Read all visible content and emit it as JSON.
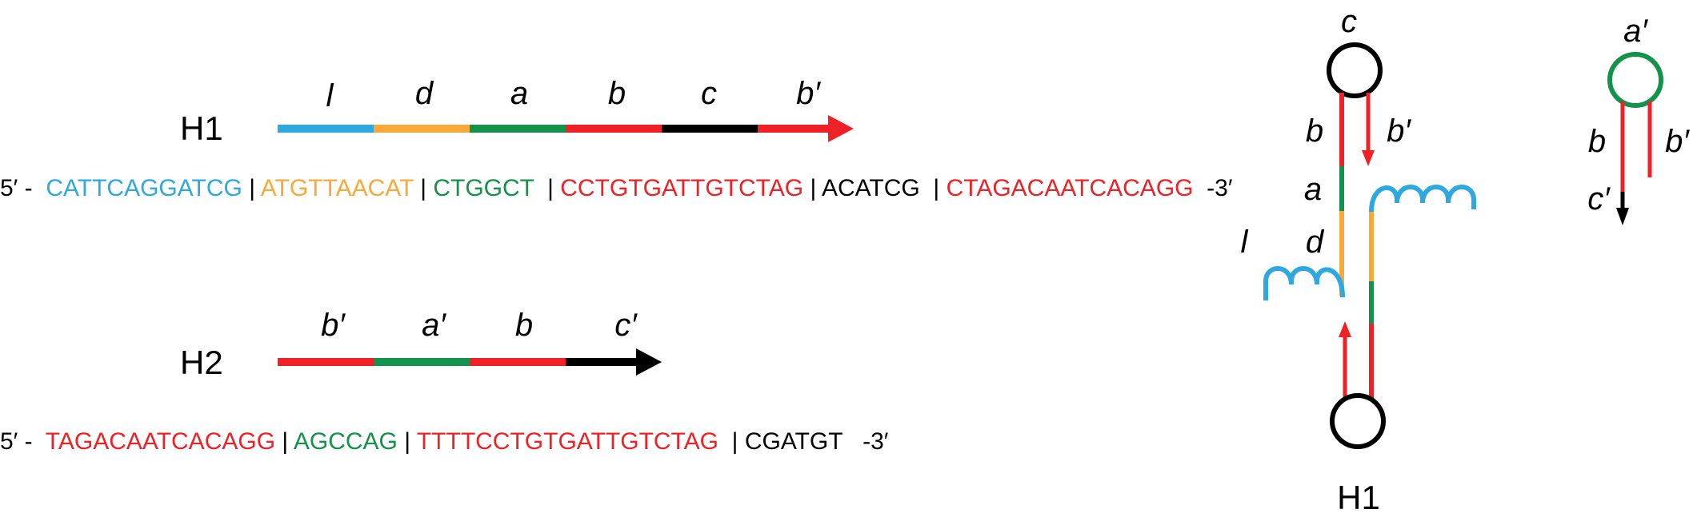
{
  "colors": {
    "blue": "#2ea8df",
    "orange": "#f9a83a",
    "green": "#14914a",
    "red": "#ee2127",
    "black": "#000000"
  },
  "h1": {
    "name": "H1",
    "segments": [
      {
        "label": "l",
        "color": "blue"
      },
      {
        "label": "d",
        "color": "orange"
      },
      {
        "label": "a",
        "color": "green"
      },
      {
        "label": "b",
        "color": "red"
      },
      {
        "label": "c",
        "color": "black"
      },
      {
        "label": "b′",
        "color": "red"
      }
    ],
    "sequence": {
      "prefix": "5′ - ",
      "parts": [
        {
          "text": "CATTCAGGATCG",
          "color": "blue"
        },
        {
          "text": "|",
          "color": "black"
        },
        {
          "text": "ATGTTAACAT",
          "color": "orange"
        },
        {
          "text": "|",
          "color": "black"
        },
        {
          "text": "CTGGCT ",
          "color": "green"
        },
        {
          "text": "|",
          "color": "black"
        },
        {
          "text": "CCTGTGATTGTCTAG",
          "color": "red"
        },
        {
          "text": "|",
          "color": "black"
        },
        {
          "text": "ACATCG ",
          "color": "black"
        },
        {
          "text": "|",
          "color": "black"
        },
        {
          "text": "CTAGACAATCACAGG",
          "color": "red"
        }
      ],
      "suffix": " -3′"
    }
  },
  "h2": {
    "name": "H2",
    "segments": [
      {
        "label": "b′",
        "color": "red"
      },
      {
        "label": "a′",
        "color": "green"
      },
      {
        "label": "b",
        "color": "red"
      },
      {
        "label": "c′",
        "color": "black"
      }
    ],
    "sequence": {
      "prefix": "5′ - ",
      "parts": [
        {
          "text": "TAGACAATCACAGG",
          "color": "red"
        },
        {
          "text": "|",
          "color": "black"
        },
        {
          "text": "AGCCAG",
          "color": "green"
        },
        {
          "text": "|",
          "color": "black"
        },
        {
          "text": "TTTTCCTGTGATTGTCTAG",
          "color": "red"
        },
        {
          "text": " |",
          "color": "black"
        },
        {
          "text": "CGATGT",
          "color": "black"
        }
      ],
      "suffix": "  -3′"
    }
  },
  "h1_hairpin": {
    "loop_label": "c",
    "labels": {
      "b": "b",
      "b_prime": "b′",
      "a": "a",
      "l": "l",
      "d": "d"
    },
    "caption": "H1"
  },
  "h2_hairpin": {
    "loop_label": "a′",
    "labels": {
      "b": "b",
      "b_prime": "b′",
      "c_prime": "c′"
    }
  }
}
